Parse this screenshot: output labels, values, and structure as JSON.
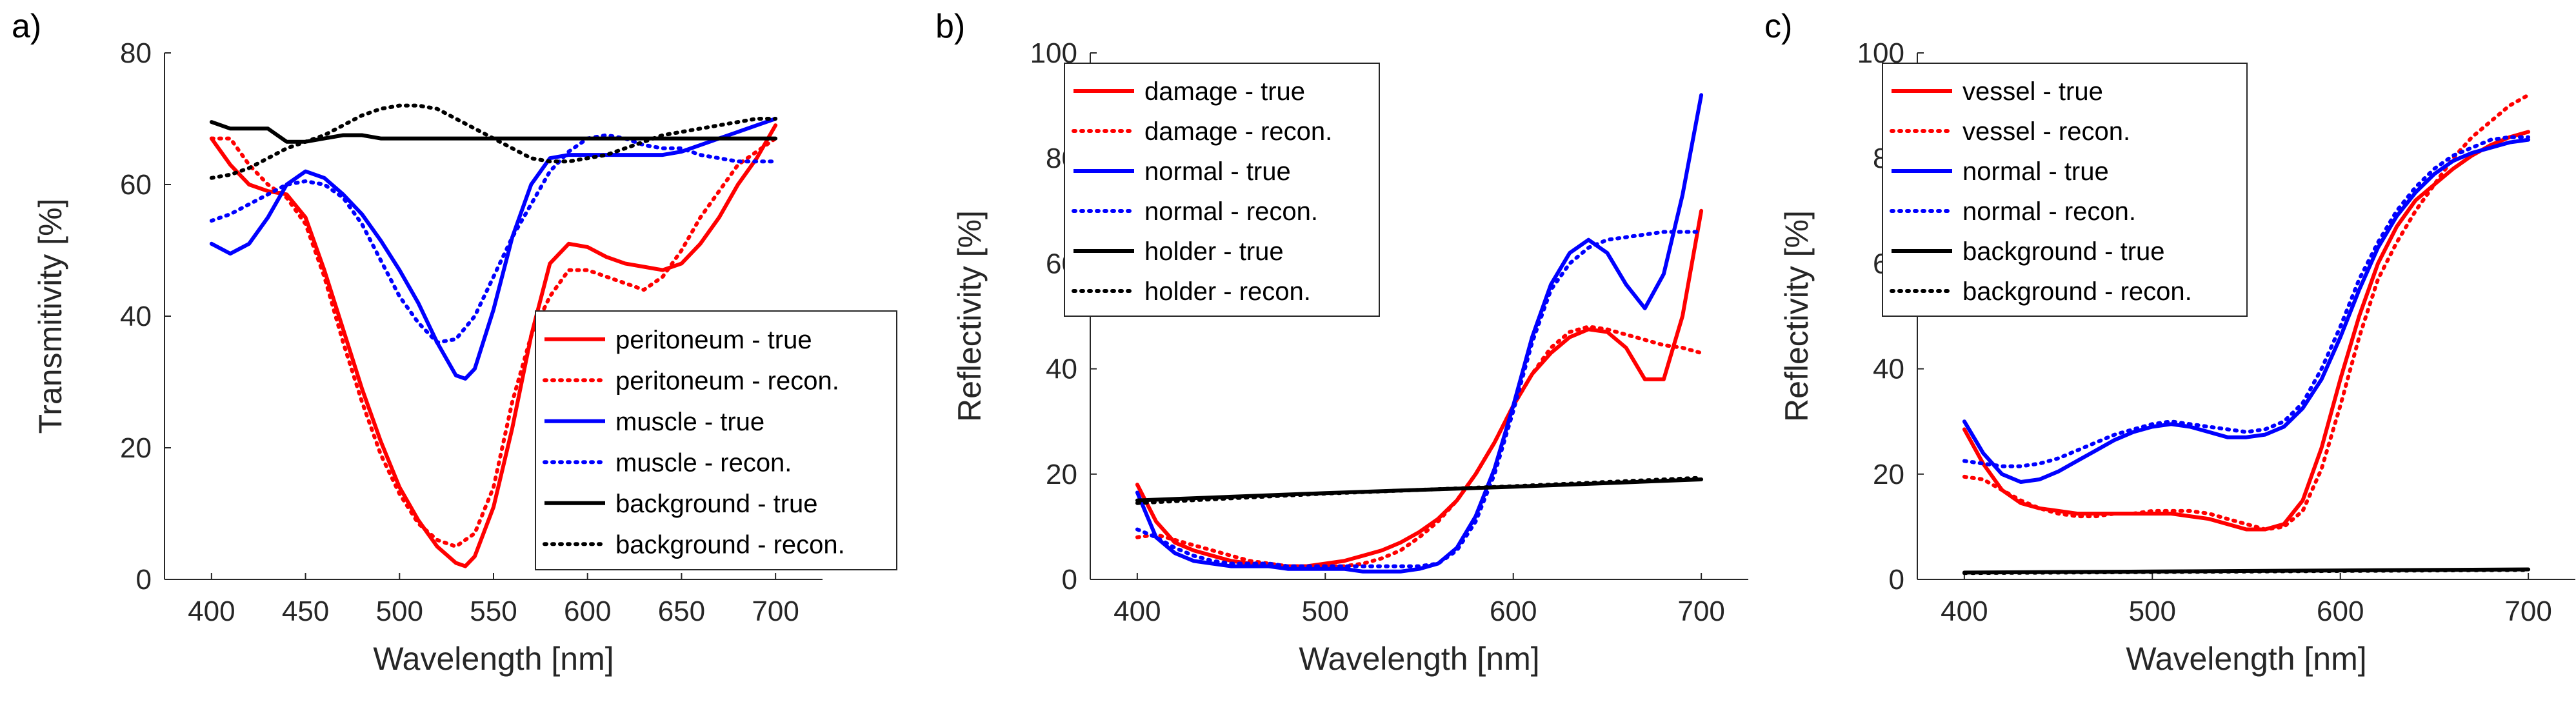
{
  "chart_data": [
    {
      "panel_label": "a)",
      "type": "line",
      "xlabel": "Wavelength [nm]",
      "ylabel": "Transmitivity [%]",
      "xlim": [
        375,
        725
      ],
      "ylim": [
        0,
        80
      ],
      "xticks": [
        400,
        450,
        500,
        550,
        600,
        650,
        700
      ],
      "yticks": [
        0,
        20,
        40,
        60,
        80
      ],
      "legend_position": "lower-right",
      "series": [
        {
          "name": "peritoneum - true",
          "color": "#ff0000",
          "style": "solid",
          "x": [
            400,
            410,
            420,
            430,
            440,
            450,
            460,
            470,
            480,
            490,
            500,
            510,
            520,
            530,
            535,
            540,
            550,
            560,
            570,
            580,
            590,
            600,
            610,
            620,
            630,
            640,
            650,
            660,
            670,
            680,
            690,
            700
          ],
          "y": [
            67,
            63,
            60,
            59,
            58.5,
            55,
            47,
            38,
            29,
            21,
            14,
            9,
            5,
            2.5,
            2,
            3.5,
            11,
            23,
            37,
            48,
            51,
            50.5,
            49,
            48,
            47.5,
            47,
            48,
            51,
            55,
            60,
            64,
            69
          ]
        },
        {
          "name": "peritoneum - recon.",
          "color": "#ff0000",
          "style": "dotted",
          "x": [
            400,
            410,
            420,
            430,
            440,
            450,
            460,
            470,
            480,
            490,
            500,
            510,
            520,
            530,
            540,
            550,
            560,
            570,
            580,
            590,
            600,
            610,
            620,
            630,
            640,
            650,
            660,
            670,
            680,
            690,
            700
          ],
          "y": [
            67,
            67,
            63,
            60,
            58,
            54,
            46,
            36,
            27,
            19,
            13,
            8.5,
            6,
            5,
            7,
            14,
            27,
            37,
            43,
            47,
            47,
            46,
            45,
            44,
            46,
            50,
            55,
            59,
            63,
            65,
            67
          ]
        },
        {
          "name": "muscle - true",
          "color": "#0000ff",
          "style": "solid",
          "x": [
            400,
            410,
            420,
            430,
            440,
            450,
            460,
            470,
            480,
            490,
            500,
            510,
            520,
            530,
            535,
            540,
            550,
            560,
            570,
            580,
            590,
            600,
            610,
            620,
            630,
            640,
            650,
            660,
            670,
            680,
            690,
            700
          ],
          "y": [
            51,
            49.5,
            51,
            55,
            60,
            62,
            61,
            58.5,
            55.5,
            51.5,
            47,
            42,
            36,
            31,
            30.5,
            32,
            41,
            52,
            60,
            64,
            64.5,
            64.5,
            64.5,
            64.5,
            64.5,
            64.5,
            65,
            66,
            67,
            68,
            69,
            70
          ]
        },
        {
          "name": "muscle - recon.",
          "color": "#0000ff",
          "style": "dotted",
          "x": [
            400,
            410,
            420,
            430,
            440,
            450,
            460,
            470,
            480,
            490,
            500,
            510,
            520,
            530,
            540,
            550,
            560,
            570,
            580,
            590,
            600,
            610,
            620,
            630,
            640,
            650,
            660,
            670,
            680,
            690,
            700
          ],
          "y": [
            54.5,
            55.5,
            57,
            58.5,
            60,
            60.5,
            60,
            58,
            54,
            48.5,
            43,
            39,
            36,
            36.5,
            40,
            46,
            52,
            57,
            62,
            65,
            67,
            67.5,
            67,
            66,
            65.5,
            65.5,
            64.5,
            64,
            63.5,
            63.5,
            63.5
          ]
        },
        {
          "name": "background - true",
          "color": "#000000",
          "style": "solid",
          "x": [
            400,
            410,
            420,
            430,
            440,
            450,
            460,
            470,
            480,
            490,
            500,
            510,
            520,
            530,
            540,
            550,
            560,
            570,
            580,
            590,
            600,
            610,
            620,
            630,
            640,
            650,
            660,
            670,
            680,
            690,
            700
          ],
          "y": [
            69.5,
            68.5,
            68.5,
            68.5,
            66.5,
            66.5,
            67,
            67.5,
            67.5,
            67,
            67,
            67,
            67,
            67,
            67,
            67,
            67,
            67,
            67,
            67,
            67,
            67,
            67,
            67,
            67,
            67,
            67,
            67,
            67,
            67,
            67
          ]
        },
        {
          "name": "background - recon.",
          "color": "#000000",
          "style": "dotted",
          "x": [
            400,
            410,
            420,
            430,
            440,
            450,
            460,
            470,
            480,
            490,
            500,
            510,
            520,
            530,
            540,
            550,
            560,
            570,
            580,
            590,
            600,
            610,
            620,
            630,
            640,
            650,
            660,
            670,
            680,
            690,
            700
          ],
          "y": [
            61,
            61.5,
            62.5,
            64,
            65.5,
            66.5,
            67.5,
            69,
            70.5,
            71.5,
            72,
            72,
            71.5,
            70,
            68.5,
            67,
            65.5,
            64,
            63.5,
            63.5,
            64,
            64.5,
            65.5,
            66.5,
            67.5,
            68,
            68.5,
            69,
            69.5,
            70,
            70
          ]
        }
      ]
    },
    {
      "panel_label": "b)",
      "type": "line",
      "xlabel": "Wavelength [nm]",
      "ylabel": "Reflectivity [%]",
      "xlim": [
        375,
        725
      ],
      "ylim": [
        0,
        100
      ],
      "xticks": [
        400,
        500,
        600,
        700
      ],
      "yticks": [
        0,
        20,
        40,
        60,
        80,
        100
      ],
      "legend_position": "top-left",
      "series": [
        {
          "name": "damage - true",
          "color": "#ff0000",
          "style": "solid",
          "x": [
            400,
            410,
            420,
            430,
            440,
            450,
            460,
            470,
            480,
            490,
            500,
            510,
            520,
            530,
            540,
            550,
            560,
            570,
            580,
            590,
            600,
            610,
            620,
            630,
            640,
            650,
            660,
            670,
            680,
            690,
            700
          ],
          "y": [
            18,
            11,
            7,
            5.5,
            4.5,
            3.5,
            3,
            2.5,
            2.5,
            2.5,
            3,
            3.5,
            4.5,
            5.5,
            7,
            9,
            11.5,
            15,
            20,
            26,
            33,
            39,
            43,
            46,
            47.5,
            47,
            44,
            38,
            38,
            50,
            70
          ]
        },
        {
          "name": "damage - recon.",
          "color": "#ff0000",
          "style": "dotted",
          "x": [
            400,
            410,
            420,
            430,
            440,
            450,
            460,
            470,
            480,
            490,
            500,
            510,
            520,
            530,
            540,
            550,
            560,
            570,
            580,
            590,
            600,
            610,
            620,
            630,
            640,
            650,
            660,
            670,
            680,
            690,
            700
          ],
          "y": [
            8,
            8.5,
            7.5,
            6.5,
            5.5,
            4.5,
            3.5,
            3,
            2.5,
            2.5,
            2.5,
            2.5,
            3,
            4,
            5.5,
            8,
            11,
            15,
            20,
            26,
            33,
            39,
            44,
            47,
            48,
            47.5,
            46.5,
            45.5,
            44.5,
            44,
            43
          ]
        },
        {
          "name": "normal - true",
          "color": "#0000ff",
          "style": "solid",
          "x": [
            400,
            410,
            420,
            430,
            440,
            450,
            460,
            470,
            480,
            490,
            500,
            510,
            520,
            530,
            540,
            550,
            560,
            570,
            580,
            590,
            600,
            610,
            620,
            630,
            640,
            650,
            660,
            670,
            680,
            690,
            700
          ],
          "y": [
            16.5,
            8,
            5,
            3.5,
            3,
            2.5,
            2.5,
            2.5,
            2,
            2,
            2,
            2,
            1.5,
            1.5,
            1.5,
            2,
            3,
            6,
            12,
            21,
            33,
            46,
            56,
            62,
            64.5,
            62,
            56,
            51.5,
            58,
            73,
            92
          ]
        },
        {
          "name": "normal - recon.",
          "color": "#0000ff",
          "style": "dotted",
          "x": [
            400,
            410,
            420,
            430,
            440,
            450,
            460,
            470,
            480,
            490,
            500,
            510,
            520,
            530,
            540,
            550,
            560,
            570,
            580,
            590,
            600,
            610,
            620,
            630,
            640,
            650,
            660,
            670,
            680,
            690,
            700
          ],
          "y": [
            9.5,
            8,
            6,
            4.5,
            3.5,
            3,
            3,
            3,
            2.5,
            2.5,
            2.5,
            2.5,
            2.5,
            2.5,
            2.5,
            2.5,
            3,
            5.5,
            11,
            20,
            32,
            45,
            55,
            60,
            63,
            64.5,
            65,
            65.5,
            66,
            66,
            66
          ]
        },
        {
          "name": "holder - true",
          "color": "#000000",
          "style": "solid",
          "x": [
            400,
            450,
            500,
            550,
            600,
            650,
            700
          ],
          "y": [
            15,
            15.7,
            16.4,
            17,
            17.6,
            18.3,
            19
          ]
        },
        {
          "name": "holder - recon.",
          "color": "#000000",
          "style": "dotted",
          "x": [
            400,
            450,
            500,
            550,
            600,
            650,
            700
          ],
          "y": [
            14.5,
            15.4,
            16.3,
            17,
            17.7,
            18.5,
            19.3
          ]
        }
      ]
    },
    {
      "panel_label": "c)",
      "type": "line",
      "xlabel": "Wavelength [nm]",
      "ylabel": "Reflectivity [%]",
      "xlim": [
        375,
        725
      ],
      "ylim": [
        0,
        100
      ],
      "xticks": [
        400,
        500,
        600,
        700
      ],
      "yticks": [
        0,
        20,
        40,
        60,
        80,
        100
      ],
      "legend_position": "top-left",
      "series": [
        {
          "name": "vessel - true",
          "color": "#ff0000",
          "style": "solid",
          "x": [
            400,
            410,
            420,
            430,
            440,
            450,
            460,
            470,
            480,
            490,
            500,
            510,
            520,
            530,
            540,
            550,
            560,
            570,
            580,
            590,
            600,
            610,
            620,
            630,
            640,
            650,
            660,
            670,
            680,
            690,
            700
          ],
          "y": [
            28.5,
            22,
            17,
            14.5,
            13.5,
            13,
            12.5,
            12.5,
            12.5,
            12.5,
            12.5,
            12.5,
            12,
            11.5,
            10.5,
            9.5,
            9.5,
            10.5,
            15,
            25,
            38,
            50,
            60,
            67,
            72,
            75,
            78,
            80.5,
            82.5,
            84,
            85
          ]
        },
        {
          "name": "vessel - recon.",
          "color": "#ff0000",
          "style": "dotted",
          "x": [
            400,
            410,
            420,
            430,
            440,
            450,
            460,
            470,
            480,
            490,
            500,
            510,
            520,
            530,
            540,
            550,
            560,
            570,
            580,
            590,
            600,
            610,
            620,
            630,
            640,
            650,
            660,
            670,
            680,
            690,
            700
          ],
          "y": [
            19.5,
            19,
            17,
            15,
            13.5,
            12.5,
            12,
            12,
            12.5,
            12.5,
            13,
            13,
            13,
            12.5,
            11.5,
            10.5,
            9.5,
            10,
            13,
            21,
            33,
            46,
            57,
            64,
            70,
            75,
            80,
            84,
            87,
            90,
            92
          ]
        },
        {
          "name": "normal - true",
          "color": "#0000ff",
          "style": "solid",
          "x": [
            400,
            410,
            420,
            430,
            440,
            450,
            460,
            470,
            480,
            490,
            500,
            510,
            520,
            530,
            540,
            550,
            560,
            570,
            580,
            590,
            600,
            610,
            620,
            630,
            640,
            650,
            660,
            670,
            680,
            690,
            700
          ],
          "y": [
            30,
            24,
            20,
            18.5,
            19,
            20.5,
            22.5,
            24.5,
            26.5,
            28,
            29,
            29.5,
            29,
            28,
            27,
            27,
            27.5,
            29,
            32.5,
            38,
            46,
            55,
            63,
            69,
            73.5,
            77,
            79.5,
            81,
            82,
            83,
            83.5
          ]
        },
        {
          "name": "normal - recon.",
          "color": "#0000ff",
          "style": "dotted",
          "x": [
            400,
            410,
            420,
            430,
            440,
            450,
            460,
            470,
            480,
            490,
            500,
            510,
            520,
            530,
            540,
            550,
            560,
            570,
            580,
            590,
            600,
            610,
            620,
            630,
            640,
            650,
            660,
            670,
            680,
            690,
            700
          ],
          "y": [
            22.5,
            22,
            21.5,
            21.5,
            22,
            23,
            24.5,
            26,
            27.5,
            28.5,
            29.5,
            30,
            29.5,
            29,
            28.5,
            28,
            28.5,
            30,
            33.5,
            40,
            48,
            57,
            64,
            70,
            74.5,
            78,
            80.5,
            82,
            83.5,
            84,
            84
          ]
        },
        {
          "name": "background - true",
          "color": "#000000",
          "style": "solid",
          "x": [
            400,
            500,
            600,
            700
          ],
          "y": [
            1.3,
            1.5,
            1.7,
            1.9
          ]
        },
        {
          "name": "background - recon.",
          "color": "#000000",
          "style": "dotted",
          "x": [
            400,
            500,
            600,
            700
          ],
          "y": [
            1.2,
            1.4,
            1.6,
            1.8
          ]
        }
      ]
    }
  ]
}
